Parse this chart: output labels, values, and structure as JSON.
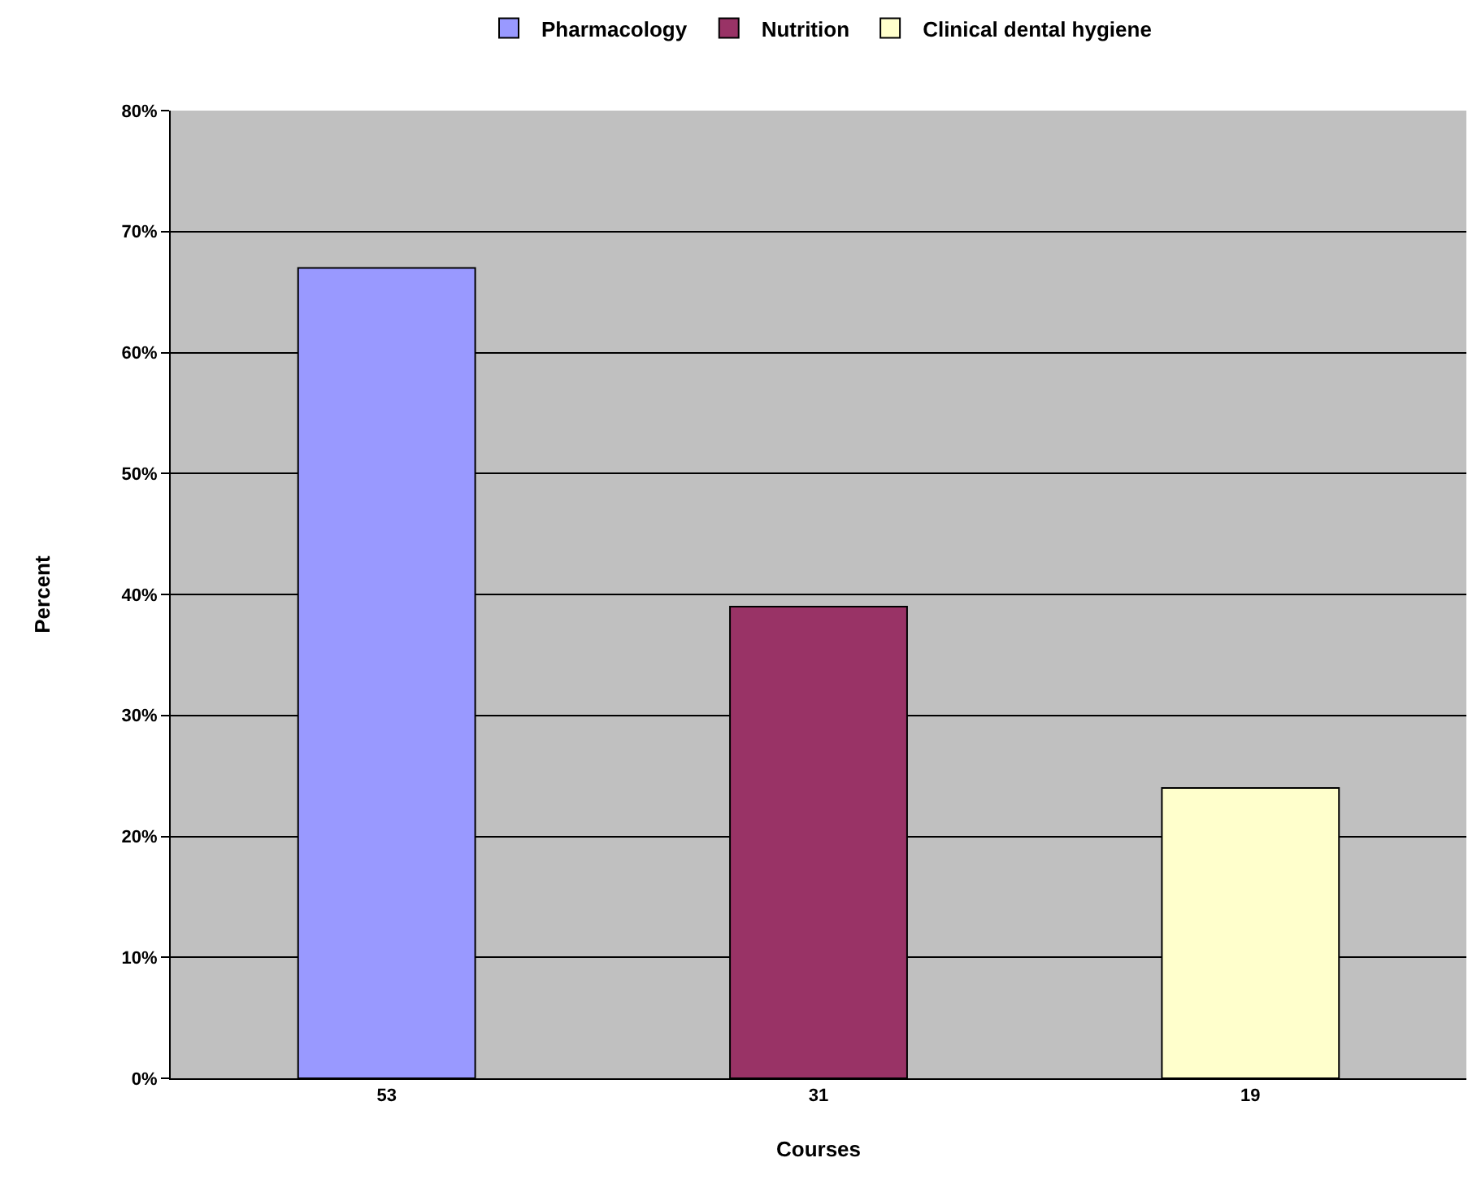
{
  "chart_data": {
    "type": "bar",
    "xlabel": "Courses",
    "ylabel": "Percent",
    "categories": [
      "53",
      "31",
      "19"
    ],
    "series": [
      {
        "name": "Pharmacology",
        "color": "#9999ff",
        "values": [
          67,
          null,
          null
        ]
      },
      {
        "name": "Nutrition",
        "color": "#993366",
        "values": [
          null,
          39,
          null
        ]
      },
      {
        "name": "Clinical dental hygiene",
        "color": "#ffffcc",
        "values": [
          null,
          null,
          24
        ]
      }
    ],
    "ylim": [
      0,
      80
    ],
    "yticks": [
      {
        "value": 0,
        "label": "0%"
      },
      {
        "value": 10,
        "label": "10%"
      },
      {
        "value": 20,
        "label": "20%"
      },
      {
        "value": 30,
        "label": "30%"
      },
      {
        "value": 40,
        "label": "40%"
      },
      {
        "value": 50,
        "label": "50%"
      },
      {
        "value": 60,
        "label": "60%"
      },
      {
        "value": 70,
        "label": "70%"
      },
      {
        "value": 80,
        "label": "80%"
      }
    ],
    "grid": "y",
    "legend": "top"
  }
}
